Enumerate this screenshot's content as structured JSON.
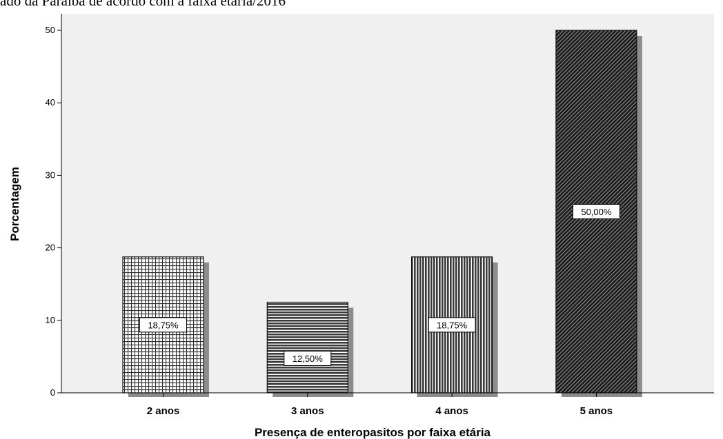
{
  "page": {
    "title_fragment": "ado da Paraíba de acordo com a faixa etária/2016"
  },
  "chart_data": {
    "type": "bar",
    "categories": [
      "2 anos",
      "3 anos",
      "4 anos",
      "5 anos"
    ],
    "values": [
      18.75,
      12.5,
      18.75,
      50.0
    ],
    "data_labels": [
      "18,75%",
      "12,50%",
      "18,75%",
      "50,00%"
    ],
    "patterns": [
      "grid",
      "horizontal-lines",
      "vertical-lines",
      "diagonal-lines"
    ],
    "xlabel": "Presença de enteropasitos por faixa etária",
    "ylabel": "Porcentagem",
    "ylim": [
      0,
      50
    ],
    "yticks": [
      0,
      10,
      20,
      30,
      40,
      50
    ],
    "grid": false,
    "legend": "none",
    "colors": {
      "plot_background": "#f0f0f0",
      "bar_fill": "#ffffff",
      "bar_pattern": "#2f2f2f",
      "bar_stroke": "#111111",
      "bar_shadow": "#8c8c8c"
    }
  }
}
